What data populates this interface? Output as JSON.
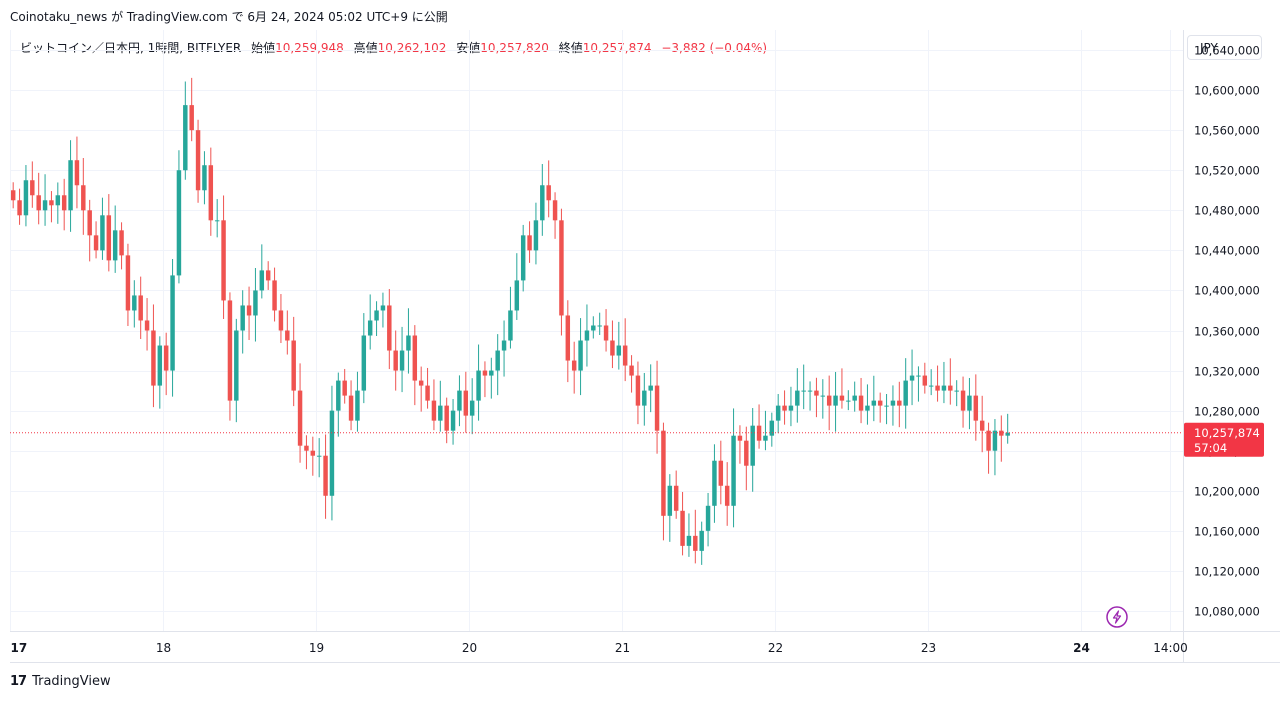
{
  "header": {
    "text": "Coinotaku_news が TradingView.com で 6月 24, 2024 05:02 UTC+9 に公開"
  },
  "legend": {
    "symbol": "ビットコイン／日本円, 1時間, BITFLYER",
    "open_label": "始値",
    "open": "10,259,948",
    "high_label": "高値",
    "high": "10,262,102",
    "low_label": "安値",
    "low": "10,257,820",
    "close_label": "終値",
    "close": "10,257,874",
    "change": "−3,882 (−0.04%)"
  },
  "currency": "JPY",
  "footer": {
    "brand": "TradingView",
    "logo_mark": "17"
  },
  "colors": {
    "up": "#26a69a",
    "down": "#ef5350",
    "price_tag": "#f23645",
    "grid": "#f0f3fa",
    "bolt": "#9c27b0"
  },
  "chart_data": {
    "type": "candlestick",
    "title": "ビットコイン／日本円, 1時間, BITFLYER",
    "ylim": [
      10060000,
      10660000
    ],
    "y_ticks": [
      10080000,
      10120000,
      10160000,
      10200000,
      10240000,
      10280000,
      10320000,
      10360000,
      10400000,
      10440000,
      10480000,
      10520000,
      10560000,
      10600000,
      10640000
    ],
    "y_tick_labels": [
      "10,080,000",
      "10,120,000",
      "10,160,000",
      "10,200,000",
      "10,240,000",
      "10,280,000",
      "10,320,000",
      "10,360,000",
      "10,400,000",
      "10,440,000",
      "10,480,000",
      "10,520,000",
      "10,560,000",
      "10,600,000",
      "10,640,000"
    ],
    "x_ticks": [
      {
        "label": "17",
        "bold": true,
        "hour": 0
      },
      {
        "label": "18",
        "bold": false,
        "hour": 24
      },
      {
        "label": "19",
        "bold": false,
        "hour": 48
      },
      {
        "label": "20",
        "bold": false,
        "hour": 72
      },
      {
        "label": "21",
        "bold": false,
        "hour": 96
      },
      {
        "label": "22",
        "bold": false,
        "hour": 120
      },
      {
        "label": "23",
        "bold": false,
        "hour": 144
      },
      {
        "label": "24",
        "bold": true,
        "hour": 168
      },
      {
        "label": "14:00",
        "bold": false,
        "hour": 182
      }
    ],
    "x_range_hours": [
      0,
      184
    ],
    "last_price": 10257874,
    "last_price_label": "10,257,874",
    "countdown": "57:04",
    "candles_close": [
      10490000,
      10475000,
      10510000,
      10495000,
      10480000,
      10490000,
      10485000,
      10495000,
      10480000,
      10530000,
      10505000,
      10480000,
      10455000,
      10440000,
      10475000,
      10430000,
      10460000,
      10435000,
      10380000,
      10395000,
      10370000,
      10360000,
      10305000,
      10345000,
      10320000,
      10415000,
      10520000,
      10585000,
      10560000,
      10500000,
      10525000,
      10470000,
      10470000,
      10390000,
      10290000,
      10360000,
      10385000,
      10375000,
      10400000,
      10420000,
      10410000,
      10380000,
      10360000,
      10350000,
      10300000,
      10245000,
      10240000,
      10235000,
      10235000,
      10195000,
      10280000,
      10310000,
      10295000,
      10270000,
      10300000,
      10355000,
      10370000,
      10380000,
      10385000,
      10340000,
      10320000,
      10340000,
      10355000,
      10310000,
      10305000,
      10290000,
      10270000,
      10285000,
      10260000,
      10280000,
      10300000,
      10275000,
      10290000,
      10320000,
      10315000,
      10320000,
      10340000,
      10350000,
      10380000,
      10410000,
      10455000,
      10440000,
      10470000,
      10505000,
      10490000,
      10470000,
      10375000,
      10330000,
      10320000,
      10350000,
      10360000,
      10365000,
      10365000,
      10350000,
      10335000,
      10345000,
      10325000,
      10315000,
      10285000,
      10300000,
      10305000,
      10260000,
      10175000,
      10205000,
      10180000,
      10145000,
      10155000,
      10140000,
      10160000,
      10185000,
      10230000,
      10205000,
      10185000,
      10255000,
      10250000,
      10225000,
      10265000,
      10250000,
      10255000,
      10270000,
      10285000,
      10280000,
      10285000,
      10300000,
      10300000,
      10300000,
      10295000,
      10295000,
      10285000,
      10295000,
      10290000,
      10290000,
      10295000,
      10280000,
      10285000,
      10290000,
      10285000,
      10285000,
      10290000,
      10285000,
      10310000,
      10315000,
      10315000,
      10305000,
      10305000,
      10300000,
      10305000,
      10300000,
      10300000,
      10280000,
      10295000,
      10270000,
      10260000,
      10240000,
      10260000,
      10255000,
      10258000
    ]
  }
}
